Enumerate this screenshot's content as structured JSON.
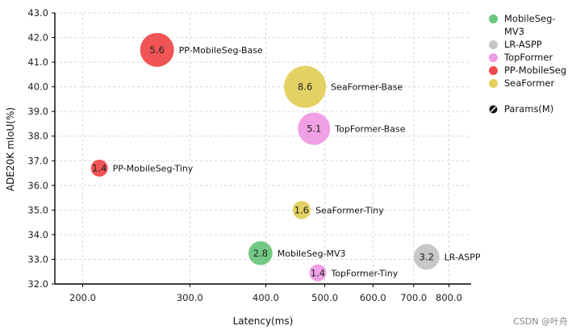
{
  "chart_data": {
    "type": "scatter",
    "subtype": "bubble",
    "xlabel": "Latency(ms)",
    "ylabel": "ADE20K mIoU(%)",
    "x_scale": "log",
    "xlim": [
      180,
      870
    ],
    "ylim": [
      32.0,
      43.0
    ],
    "x_ticks": [
      200,
      300,
      400,
      500,
      600,
      700,
      800
    ],
    "x_tick_labels": [
      "200.0",
      "300.0",
      "400.0",
      "500.0",
      "600.0",
      "700.0",
      "800.0"
    ],
    "y_ticks": [
      32,
      33,
      34,
      35,
      36,
      37,
      38,
      39,
      40,
      41,
      42,
      43
    ],
    "y_tick_labels": [
      "32.0",
      "33.0",
      "34.0",
      "35.0",
      "36.0",
      "37.0",
      "38.0",
      "39.0",
      "40.0",
      "41.0",
      "42.0",
      "43.0"
    ],
    "grid": true,
    "legend_position": "right",
    "series": [
      {
        "name": "MobileSeg-MV3",
        "color": "#6cc67c",
        "points": [
          {
            "label": "MobileSeg-MV3",
            "x": 392,
            "y": 33.25,
            "size": 2.8,
            "size_label": "2.8"
          }
        ]
      },
      {
        "name": "LR-ASPP",
        "color": "#c4c4c4",
        "points": [
          {
            "label": "LR-ASPP",
            "x": 735,
            "y": 33.1,
            "size": 3.2,
            "size_label": "3.2"
          }
        ]
      },
      {
        "name": "TopFormer",
        "color": "#ef9be4",
        "points": [
          {
            "label": "TopFormer-Base",
            "x": 480,
            "y": 38.3,
            "size": 5.1,
            "size_label": "5.1"
          },
          {
            "label": "TopFormer-Tiny",
            "x": 487,
            "y": 32.45,
            "size": 1.4,
            "size_label": "1.4"
          }
        ]
      },
      {
        "name": "PP-MobileSeg",
        "color": "#ef4b4b",
        "points": [
          {
            "label": "PP-MobileSeg-Base",
            "x": 265,
            "y": 41.5,
            "size": 5.6,
            "size_label": "5.6"
          },
          {
            "label": "PP-MobileSeg-Tiny",
            "x": 213,
            "y": 36.7,
            "size": 1.4,
            "size_label": "1.4"
          }
        ]
      },
      {
        "name": "SeaFormer",
        "color": "#e3cf5c",
        "points": [
          {
            "label": "SeaFormer-Base",
            "x": 464,
            "y": 40.0,
            "size": 8.6,
            "size_label": "8.6"
          },
          {
            "label": "SeaFormer-Tiny",
            "x": 458,
            "y": 35.0,
            "size": 1.6,
            "size_label": "1.6"
          }
        ]
      }
    ],
    "size_legend_label": "Params(M)"
  },
  "legend": {
    "items": [
      {
        "label": "MobileSeg-MV3",
        "color": "#6cc67c"
      },
      {
        "label": "LR-ASPP",
        "color": "#c4c4c4"
      },
      {
        "label": "TopFormer",
        "color": "#ef9be4"
      },
      {
        "label": "PP-MobileSeg",
        "color": "#ef4b4b"
      },
      {
        "label": "SeaFormer",
        "color": "#e3cf5c"
      }
    ],
    "params_label": "Params(M)"
  },
  "watermark": "CSDN @叶舟"
}
